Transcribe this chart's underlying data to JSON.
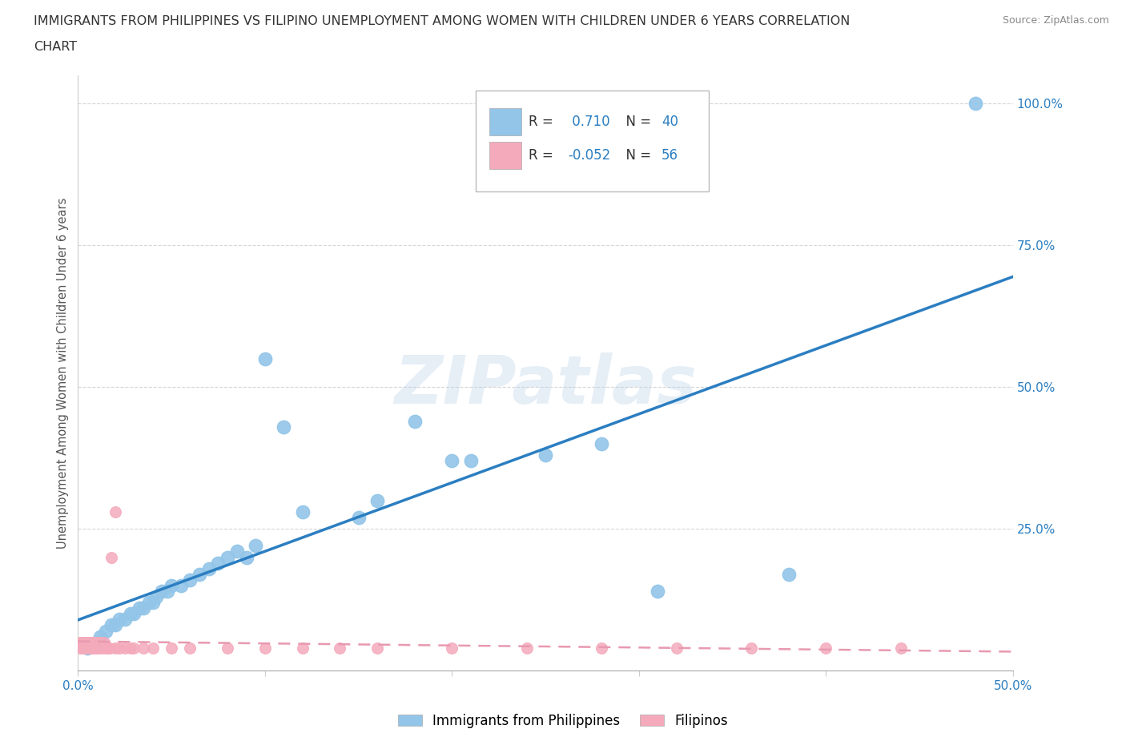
{
  "title_line1": "IMMIGRANTS FROM PHILIPPINES VS FILIPINO UNEMPLOYMENT AMONG WOMEN WITH CHILDREN UNDER 6 YEARS CORRELATION",
  "title_line2": "CHART",
  "source": "Source: ZipAtlas.com",
  "ylabel": "Unemployment Among Women with Children Under 6 years",
  "xlim": [
    0.0,
    0.5
  ],
  "ylim": [
    0.0,
    1.05
  ],
  "xticks": [
    0.0,
    0.1,
    0.2,
    0.3,
    0.4,
    0.5
  ],
  "yticks": [
    0.0,
    0.25,
    0.5,
    0.75,
    1.0
  ],
  "xtick_labels": [
    "0.0%",
    "",
    "",
    "",
    "",
    "50.0%"
  ],
  "ytick_labels": [
    "",
    "25.0%",
    "50.0%",
    "75.0%",
    "100.0%"
  ],
  "blue_R": 0.71,
  "blue_N": 40,
  "pink_R": -0.052,
  "pink_N": 56,
  "blue_color": "#92C5E8",
  "pink_color": "#F4AABB",
  "blue_line_color": "#2B7EC1",
  "pink_line_color": "#E899B0",
  "watermark": "ZIPatlas",
  "background_color": "#ffffff",
  "grid_color": "#cccccc",
  "blue_x": [
    0.005,
    0.01,
    0.012,
    0.015,
    0.018,
    0.02,
    0.022,
    0.025,
    0.028,
    0.03,
    0.033,
    0.035,
    0.038,
    0.04,
    0.042,
    0.045,
    0.048,
    0.05,
    0.055,
    0.06,
    0.065,
    0.07,
    0.075,
    0.08,
    0.085,
    0.09,
    0.095,
    0.1,
    0.11,
    0.12,
    0.15,
    0.16,
    0.18,
    0.2,
    0.21,
    0.25,
    0.28,
    0.31,
    0.38,
    0.48
  ],
  "blue_y": [
    0.04,
    0.05,
    0.06,
    0.07,
    0.08,
    0.08,
    0.09,
    0.09,
    0.1,
    0.1,
    0.11,
    0.11,
    0.12,
    0.12,
    0.13,
    0.14,
    0.14,
    0.15,
    0.15,
    0.16,
    0.17,
    0.18,
    0.19,
    0.2,
    0.21,
    0.2,
    0.22,
    0.55,
    0.43,
    0.28,
    0.27,
    0.3,
    0.44,
    0.37,
    0.37,
    0.38,
    0.4,
    0.14,
    0.17,
    1.0
  ],
  "pink_x": [
    0.001,
    0.001,
    0.002,
    0.002,
    0.003,
    0.003,
    0.003,
    0.004,
    0.004,
    0.004,
    0.005,
    0.005,
    0.005,
    0.006,
    0.006,
    0.006,
    0.007,
    0.007,
    0.008,
    0.008,
    0.008,
    0.009,
    0.009,
    0.01,
    0.01,
    0.01,
    0.011,
    0.012,
    0.013,
    0.014,
    0.015,
    0.016,
    0.017,
    0.018,
    0.02,
    0.02,
    0.022,
    0.025,
    0.028,
    0.03,
    0.035,
    0.04,
    0.05,
    0.06,
    0.08,
    0.1,
    0.12,
    0.14,
    0.16,
    0.2,
    0.24,
    0.28,
    0.32,
    0.36,
    0.4,
    0.44
  ],
  "pink_y": [
    0.04,
    0.05,
    0.04,
    0.05,
    0.04,
    0.05,
    0.04,
    0.04,
    0.05,
    0.04,
    0.04,
    0.05,
    0.04,
    0.04,
    0.05,
    0.04,
    0.04,
    0.05,
    0.04,
    0.04,
    0.05,
    0.04,
    0.05,
    0.04,
    0.05,
    0.04,
    0.04,
    0.05,
    0.04,
    0.05,
    0.04,
    0.04,
    0.04,
    0.2,
    0.28,
    0.04,
    0.04,
    0.04,
    0.04,
    0.04,
    0.04,
    0.04,
    0.04,
    0.04,
    0.04,
    0.04,
    0.04,
    0.04,
    0.04,
    0.04,
    0.04,
    0.04,
    0.04,
    0.04,
    0.04,
    0.04
  ]
}
